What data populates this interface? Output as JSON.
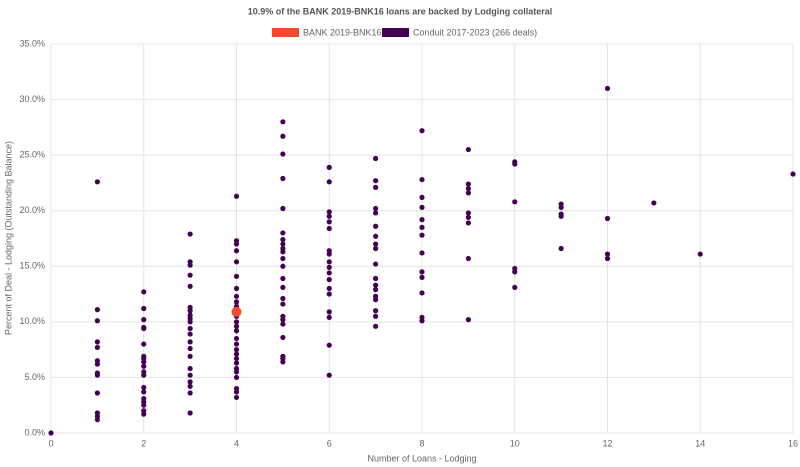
{
  "chart_data": {
    "type": "scatter",
    "title": "10.9% of the BANK 2019-BNK16 loans are backed by Lodging collateral",
    "x_label": "Number of Loans - Lodging",
    "y_label": "Percent of Deal - Lodging (Outstanding Balance)",
    "xlim": [
      0,
      16
    ],
    "xticks": [
      0,
      2,
      4,
      6,
      8,
      10,
      12,
      14,
      16
    ],
    "ylim": [
      0,
      35
    ],
    "yticks": [
      {
        "value": 0,
        "label": "0.0%"
      },
      {
        "value": 5,
        "label": "5.0%"
      },
      {
        "value": 10,
        "label": "10.0%"
      },
      {
        "value": 15,
        "label": "15.0%"
      },
      {
        "value": 20,
        "label": "20.0%"
      },
      {
        "value": 25,
        "label": "25.0%"
      },
      {
        "value": 30,
        "label": "30.0%"
      },
      {
        "value": 35,
        "label": "35.0%"
      }
    ],
    "grid": true,
    "legend": "top",
    "series": [
      {
        "name": "BANK 2019-BNK16",
        "color": "#f4492c",
        "x": [
          4
        ],
        "values": [
          10.9
        ]
      },
      {
        "name": "Conduit 2017-2023 (266 deals)",
        "color": "#440154",
        "x": [
          0,
          1,
          1,
          1,
          1,
          1,
          1,
          1,
          1,
          1,
          1,
          1,
          1,
          1,
          2,
          2,
          2,
          2,
          2,
          2,
          2,
          2,
          2,
          2,
          2,
          2,
          2,
          2,
          2,
          2,
          2,
          2,
          2,
          3,
          3,
          3,
          3,
          3,
          3,
          3,
          3,
          3,
          3,
          3,
          3,
          3,
          3,
          3,
          3,
          3,
          3,
          3,
          3,
          3,
          4,
          4,
          4,
          4,
          4,
          4,
          4,
          4,
          4,
          4,
          4,
          4,
          4,
          4,
          4,
          4,
          4,
          4,
          4,
          4,
          4,
          4,
          4,
          4,
          4,
          4,
          5,
          5,
          5,
          5,
          5,
          5,
          5,
          5,
          5,
          5,
          5,
          5,
          5,
          5,
          5,
          5,
          5,
          5,
          5,
          5,
          5,
          5,
          5,
          6,
          6,
          6,
          6,
          6,
          6,
          6,
          6,
          6,
          6,
          6,
          6,
          6,
          6,
          6,
          6,
          6,
          6,
          7,
          7,
          7,
          7,
          7,
          7,
          7,
          7,
          7,
          7,
          7,
          7,
          7,
          7,
          7,
          7,
          7,
          7,
          8,
          8,
          8,
          8,
          8,
          8,
          8,
          8,
          8,
          8,
          8,
          8,
          8,
          9,
          9,
          9,
          9,
          9,
          9,
          9,
          9,
          9,
          10,
          10,
          10,
          10,
          10,
          10,
          11,
          11,
          11,
          11,
          11,
          12,
          12,
          12,
          12,
          13,
          14,
          16
        ],
        "values": [
          0,
          22.6,
          11.1,
          10.1,
          8.2,
          7.7,
          6.5,
          6.2,
          5.4,
          5.2,
          3.6,
          1.8,
          1.5,
          1.2,
          12.7,
          11.2,
          10.2,
          9.5,
          9.4,
          8.0,
          6.9,
          6.7,
          6.4,
          6.0,
          5.5,
          5.2,
          4.1,
          3.7,
          3.1,
          2.8,
          2.5,
          2.0,
          1.7,
          17.9,
          15.4,
          15.1,
          14.2,
          13.2,
          11.3,
          11.0,
          10.6,
          10.3,
          10.0,
          9.4,
          8.9,
          8.2,
          7.6,
          6.9,
          5.8,
          5.2,
          4.6,
          4.2,
          3.6,
          1.8,
          21.3,
          17.3,
          17.0,
          16.4,
          15.4,
          14.1,
          13.0,
          12.3,
          11.8,
          11.4,
          10.5,
          10.0,
          9.6,
          9.2,
          8.5,
          8.0,
          7.5,
          7.1,
          6.7,
          6.3,
          5.8,
          5.5,
          5.0,
          4.0,
          3.7,
          3.2,
          28.0,
          26.7,
          25.1,
          22.9,
          20.2,
          18.0,
          17.4,
          17.0,
          16.6,
          16.3,
          15.7,
          15.0,
          13.9,
          13.1,
          12.1,
          11.6,
          10.5,
          10.2,
          9.8,
          8.6,
          6.9,
          6.7,
          6.4,
          23.9,
          22.6,
          19.9,
          19.5,
          19.0,
          18.4,
          16.4,
          16.1,
          15.4,
          14.9,
          14.4,
          13.8,
          13.0,
          12.5,
          10.9,
          10.4,
          7.9,
          5.2,
          24.7,
          22.7,
          22.1,
          20.2,
          19.8,
          18.6,
          17.7,
          17.0,
          16.6,
          15.2,
          13.9,
          13.3,
          12.9,
          12.3,
          12.0,
          11.0,
          10.5,
          9.6,
          27.2,
          22.8,
          21.2,
          20.3,
          19.2,
          18.5,
          17.8,
          16.2,
          14.5,
          14.0,
          12.6,
          10.4,
          10.1,
          25.5,
          22.4,
          22.0,
          21.6,
          19.8,
          19.4,
          18.9,
          15.7,
          10.2,
          24.4,
          24.2,
          20.8,
          14.8,
          14.5,
          13.1,
          20.6,
          20.3,
          19.7,
          19.5,
          16.6,
          31.0,
          19.3,
          16.1,
          15.7,
          20.7,
          16.1,
          23.3
        ]
      }
    ]
  }
}
